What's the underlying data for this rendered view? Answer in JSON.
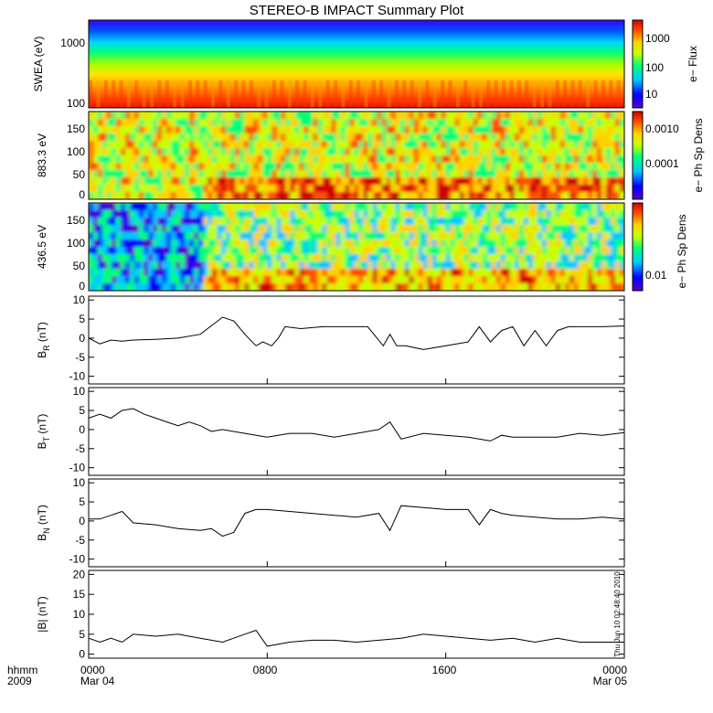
{
  "title": "STEREO-B IMPACT Summary Plot",
  "timestamp": "Thu Jun 10 02:48:40 2010",
  "time_axis": {
    "row1_labels": [
      "0000",
      "0800",
      "1600",
      "0000"
    ],
    "row2_labels": [
      "Mar 04",
      "",
      "",
      "Mar 05"
    ],
    "row1_prefix": "hhmm",
    "row2_prefix": "2009"
  },
  "colors": {
    "colormap": [
      "#5a00c8",
      "#0000ff",
      "#00c8ff",
      "#00ff78",
      "#c8ff00",
      "#ffd200",
      "#ff5000",
      "#d20000"
    ],
    "line": "#000000"
  },
  "chart_data": [
    {
      "type": "heatmap",
      "ylabel": "SWEA (eV)",
      "yscale": "log",
      "yticks": [
        "1000",
        "100"
      ],
      "colorbar_label": "e− Flux",
      "colorbar_ticks": [
        "1000",
        "100",
        "10"
      ],
      "xlim": [
        "0000",
        "0000"
      ]
    },
    {
      "type": "heatmap",
      "ylabel": "883.3 eV",
      "ylim": [
        0,
        180
      ],
      "yticks": [
        "150",
        "100",
        "50",
        "0"
      ],
      "colorbar_label": "e− Ph Sp Dens",
      "colorbar_ticks": [
        "0.0010",
        "0.0001"
      ]
    },
    {
      "type": "heatmap",
      "ylabel": "436.5 eV",
      "ylim": [
        0,
        180
      ],
      "yticks": [
        "150",
        "100",
        "50",
        "0"
      ],
      "colorbar_label": "e− Ph Sp Dens",
      "colorbar_ticks": [
        "0.01"
      ]
    },
    {
      "type": "line",
      "ylabel_main": "B",
      "ylabel_sub": "R",
      "ylabel_unit": " (nT)",
      "ylim": [
        -12,
        11
      ],
      "yticks": [
        "10",
        "5",
        "0",
        "-5",
        "-10"
      ],
      "x": [
        0,
        0.5,
        1,
        1.5,
        2,
        3,
        4,
        5,
        6,
        6.5,
        7,
        7.5,
        7.8,
        8.2,
        8.5,
        8.8,
        9.5,
        10.5,
        11.5,
        12.5,
        13.2,
        13.5,
        13.8,
        14.2,
        15,
        16,
        17,
        17.5,
        18,
        18.5,
        19,
        19.5,
        20,
        20.5,
        21,
        21.5,
        22,
        23,
        24
      ],
      "y": [
        0,
        -1.5,
        -0.5,
        -0.8,
        -0.5,
        -0.3,
        0,
        1,
        5.5,
        4.5,
        1,
        -2,
        -1,
        -2,
        0,
        3,
        2.5,
        3,
        3,
        3,
        -2,
        1,
        -2,
        -2,
        -3,
        -2,
        -1,
        3,
        -1,
        2,
        3,
        -2,
        2,
        -2,
        2,
        3,
        3,
        3,
        3.2
      ]
    },
    {
      "type": "line",
      "ylabel_main": "B",
      "ylabel_sub": "T",
      "ylabel_unit": " (nT)",
      "ylim": [
        -12,
        11
      ],
      "yticks": [
        "10",
        "5",
        "0",
        "-5",
        "-10"
      ],
      "x": [
        0,
        0.5,
        1,
        1.5,
        2,
        2.5,
        3,
        3.5,
        4,
        4.5,
        5,
        5.5,
        6,
        7,
        8,
        9,
        10,
        11,
        12,
        13,
        13.5,
        14,
        15,
        16,
        17,
        18,
        18.5,
        19,
        20,
        21,
        22,
        23,
        24
      ],
      "y": [
        3,
        4,
        3,
        5,
        5.5,
        4,
        3,
        2,
        1,
        2,
        1,
        -0.5,
        0,
        -1,
        -2,
        -1,
        -1,
        -2,
        -1,
        0,
        2,
        -2.5,
        -1,
        -1.5,
        -2,
        -3,
        -1.5,
        -2,
        -2,
        -2,
        -1,
        -1.5,
        -0.8
      ]
    },
    {
      "type": "line",
      "ylabel_main": "B",
      "ylabel_sub": "N",
      "ylabel_unit": " (nT)",
      "ylim": [
        -12,
        11
      ],
      "yticks": [
        "10",
        "5",
        "0",
        "-5",
        "-10"
      ],
      "x": [
        0,
        0.5,
        1,
        1.5,
        2,
        3,
        4,
        5,
        5.5,
        6,
        6.5,
        7,
        7.5,
        8,
        9,
        10,
        11,
        12,
        13,
        13.5,
        14,
        15,
        16,
        17,
        17.5,
        18,
        18.5,
        19,
        20,
        21,
        22,
        23,
        24
      ],
      "y": [
        0.5,
        0.5,
        1.5,
        2.5,
        -0.5,
        -1,
        -2,
        -2.5,
        -2,
        -4,
        -3,
        2,
        3,
        3,
        2.5,
        2,
        1.5,
        1,
        2,
        -2.5,
        4,
        3.5,
        3,
        3,
        -1,
        3,
        2,
        1.5,
        1,
        0.5,
        0.5,
        1,
        0.5
      ]
    },
    {
      "type": "line",
      "ylabel_main": "|B| (nT)",
      "ylim": [
        -1,
        21
      ],
      "yticks": [
        "20",
        "15",
        "10",
        "5",
        "0"
      ],
      "x": [
        0,
        0.5,
        1,
        1.5,
        2,
        3,
        4,
        5,
        6,
        7,
        7.5,
        8,
        9,
        10,
        11,
        12,
        13,
        14,
        15,
        16,
        17,
        18,
        19,
        20,
        21,
        22,
        23,
        24
      ],
      "y": [
        4,
        3,
        4,
        3,
        5,
        4.5,
        5,
        4,
        3,
        5,
        6,
        2,
        3,
        3.5,
        3.5,
        3,
        3.5,
        4,
        5,
        4.5,
        4,
        3.5,
        4,
        3,
        4,
        3,
        3,
        3
      ]
    }
  ]
}
